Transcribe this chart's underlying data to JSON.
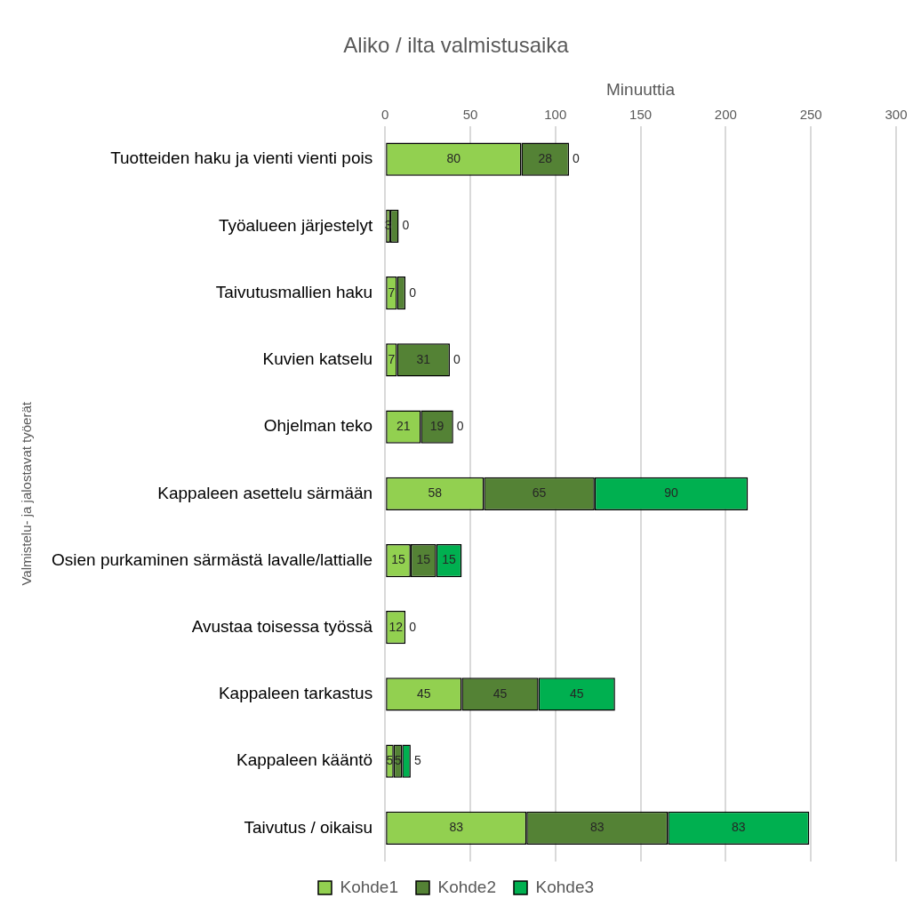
{
  "chart_data": {
    "type": "bar",
    "orientation": "horizontal",
    "stacked": true,
    "title": "Aliko / ilta valmistusaika",
    "xlabel": "Minuuttia",
    "ylabel": "Valmistelu- ja jalostavat työerät",
    "categories": [
      "Tuotteiden haku ja vienti vienti pois",
      "Työalueen järjestelyt",
      "Taivutusmallien haku",
      "Kuvien katselu",
      "Ohjelman teko",
      "Kappaleen asettelu särmään",
      "Osien purkaminen särmästä lavalle/lattialle",
      "Avustaa toisessa työssä",
      "Kappaleen tarkastus",
      "Kappaleen kääntö",
      "Taivutus / oikaisu"
    ],
    "series": [
      {
        "name": "Kohde1",
        "color": "#92d050",
        "values": [
          80,
          3,
          7,
          7,
          21,
          58,
          15,
          12,
          45,
          5,
          83
        ],
        "value_labels": [
          "80",
          "3",
          "7",
          "7",
          "21",
          "58",
          "15",
          "12",
          "45",
          "5",
          "83"
        ]
      },
      {
        "name": "Kohde2",
        "color": "#548235",
        "values": [
          28,
          5,
          5,
          31,
          19,
          65,
          15,
          0,
          45,
          5,
          83
        ],
        "value_labels": [
          "28",
          null,
          null,
          "31",
          "19",
          "65",
          "15",
          null,
          "45",
          "5",
          "83"
        ]
      },
      {
        "name": "Kohde3",
        "color": "#00b050",
        "values": [
          0,
          0,
          0,
          0,
          0,
          90,
          15,
          0,
          45,
          5,
          83
        ],
        "value_labels": [
          "0",
          "0",
          "0",
          "0",
          "0",
          "90",
          "15",
          "0",
          "45",
          "5",
          "83"
        ]
      }
    ],
    "xlim": [
      0,
      300
    ],
    "xticks": [
      0,
      50,
      100,
      150,
      200,
      250,
      300
    ],
    "grid": "x",
    "legend": "bottom"
  }
}
